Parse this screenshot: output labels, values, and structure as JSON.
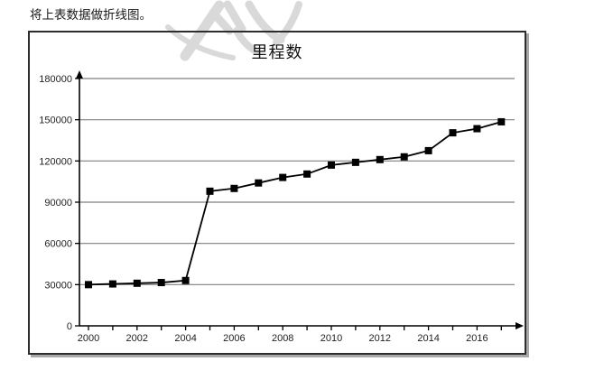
{
  "page": {
    "instruction": "将上表数据做折线图。"
  },
  "chart_data": {
    "type": "line",
    "title": "里程数",
    "xlabel": "",
    "ylabel": "",
    "x": [
      2000,
      2001,
      2002,
      2003,
      2004,
      2005,
      2006,
      2007,
      2008,
      2009,
      2010,
      2011,
      2012,
      2013,
      2014,
      2015,
      2016,
      2017
    ],
    "values": [
      30000,
      30500,
      31000,
      31500,
      33000,
      98000,
      100000,
      104000,
      108000,
      110500,
      117000,
      119000,
      121000,
      123000,
      127500,
      140500,
      143500,
      148500
    ],
    "y_ticks": [
      0,
      30000,
      60000,
      90000,
      120000,
      150000,
      180000
    ],
    "x_tick_labels": [
      "2000",
      "2002",
      "2004",
      "2006",
      "2008",
      "2010",
      "2012",
      "2014",
      "2016"
    ],
    "x_label_step": 2,
    "ylim": [
      0,
      180000
    ],
    "grid": "horizontal-only",
    "legend": "none",
    "marker": "filled-square",
    "colors": {
      "line": "#000000",
      "marker": "#000000",
      "grid": "#7f7f7f",
      "axis": "#000000",
      "tick_text": "#1f1f1f",
      "border": "#2d2d2d",
      "shadow": "#a8a8a8",
      "watermark": "#d9d9d9"
    }
  }
}
